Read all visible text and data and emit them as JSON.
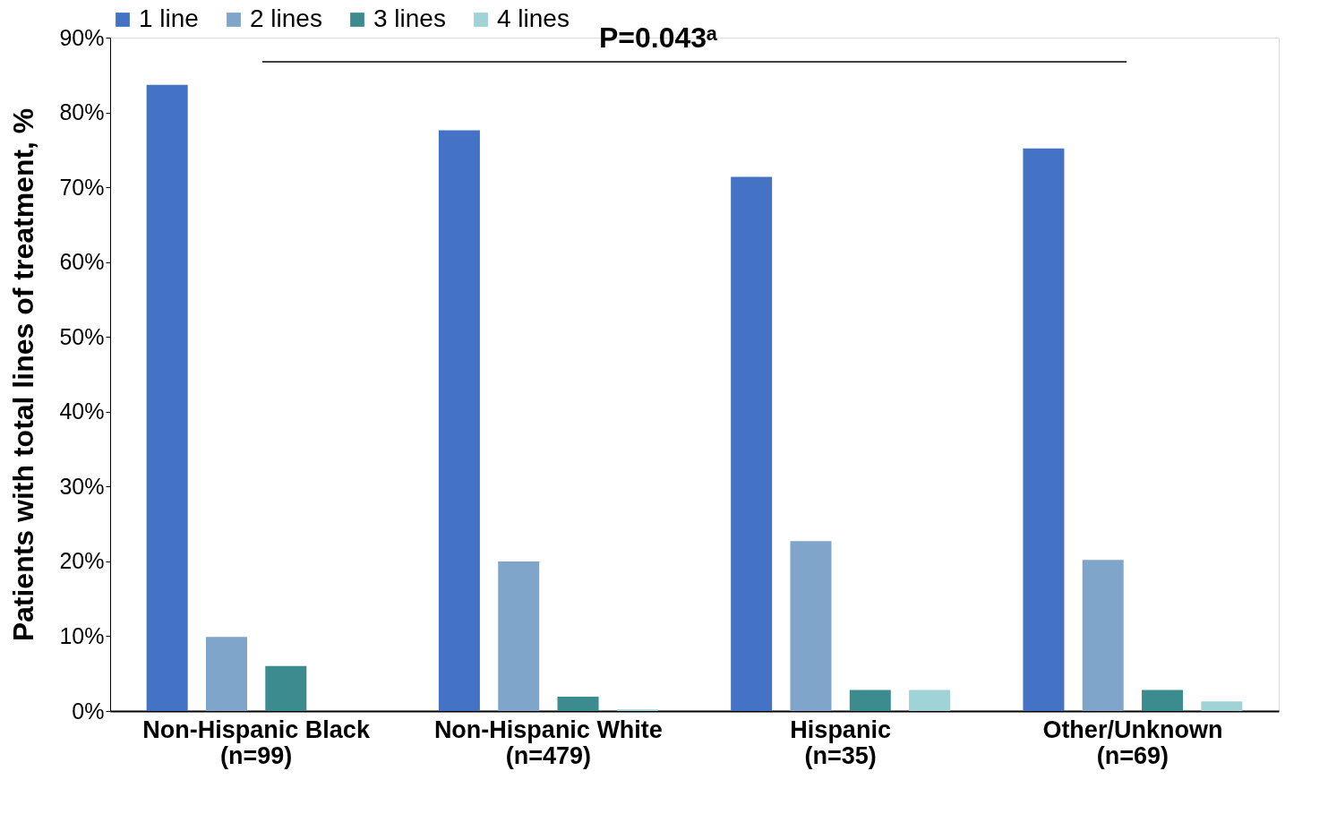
{
  "chart_data": {
    "type": "bar",
    "categories": [
      "Non-Hispanic Black\n(n=99)",
      "Non-Hispanic White\n(n=479)",
      "Hispanic\n(n=35)",
      "Other/Unknown\n(n=69)"
    ],
    "series": [
      {
        "name": "1 line",
        "color": "#4472c4",
        "values": [
          83.7,
          77.6,
          71.4,
          75.2
        ]
      },
      {
        "name": "2 lines",
        "color": "#7fa5cb",
        "values": [
          9.9,
          20.0,
          22.7,
          20.2
        ]
      },
      {
        "name": "3 lines",
        "color": "#3c8c8f",
        "values": [
          6.0,
          1.9,
          2.8,
          2.8
        ]
      },
      {
        "name": "4 lines",
        "color": "#9fd3d6",
        "values": [
          0,
          0.2,
          2.8,
          1.3
        ]
      }
    ],
    "ylabel": "Patients with total lines of treatment, %",
    "ylim": [
      0,
      90
    ],
    "yticks": [
      {
        "value": 0,
        "label": "0%"
      },
      {
        "value": 10,
        "label": "10%"
      },
      {
        "value": 20,
        "label": "20%"
      },
      {
        "value": 30,
        "label": "30%"
      },
      {
        "value": 40,
        "label": "40%"
      },
      {
        "value": 50,
        "label": "50%"
      },
      {
        "value": 60,
        "label": "60%"
      },
      {
        "value": 70,
        "label": "70%"
      },
      {
        "value": 80,
        "label": "80%"
      },
      {
        "value": 90,
        "label": "90%"
      }
    ],
    "annotations": [
      "P=0.043ᵃ"
    ],
    "legend": "top",
    "grid": false
  }
}
